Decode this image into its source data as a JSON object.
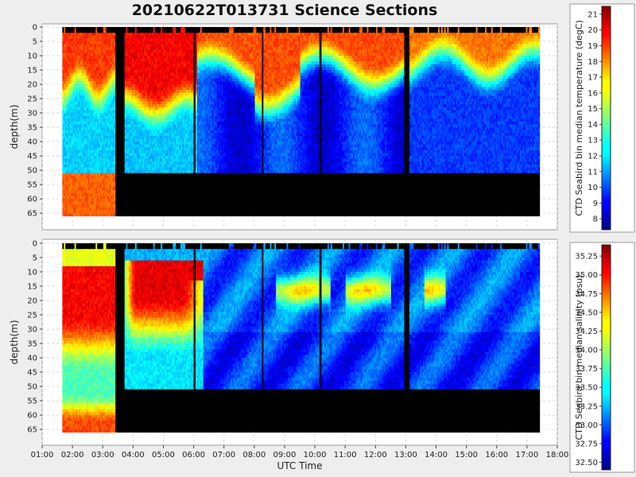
{
  "title": "20210622T013731 Science Sections",
  "chart_data": [
    {
      "type": "heatmap",
      "title": "20210622T013731 Science Sections",
      "xlabel": "UTC Time",
      "ylabel": "depth(m)",
      "x_ticks": [
        "01:00",
        "02:00",
        "03:00",
        "04:00",
        "05:00",
        "06:00",
        "07:00",
        "08:00",
        "09:00",
        "10:00",
        "11:00",
        "12:00",
        "13:00",
        "14:00",
        "15:00",
        "16:00",
        "17:00",
        "18:00"
      ],
      "y_ticks": [
        0,
        5,
        10,
        15,
        20,
        25,
        30,
        35,
        40,
        45,
        50,
        55,
        60,
        65
      ],
      "xlim": [
        "01:00",
        "18:00"
      ],
      "ylim": [
        0,
        67
      ],
      "y_inverted": true,
      "colorbar_label": "CTD Seabird bin median temperature (degC)",
      "colorbar_ticks": [
        8,
        9,
        10,
        11,
        12,
        13,
        14,
        15,
        16,
        17,
        18,
        19,
        20,
        21
      ],
      "colorbar_range": [
        7.3,
        21.5
      ],
      "colormap": "jet",
      "bottom_depth_m": 51,
      "data_time_range": [
        "01:40",
        "17:25"
      ],
      "description_of_field": [
        {
          "time": "01:40-03:25",
          "surface_mixed_layer_m": 20,
          "surface_value": 19.5,
          "deep_value": 11
        },
        {
          "time": "03:45-06:00",
          "surface_mixed_layer_m": 25,
          "surface_value": 20,
          "deep_value": 11.5
        },
        {
          "time": "06:00-13:00",
          "surface_mixed_layer_m": 14,
          "surface_value": 19,
          "deep_value": 10
        },
        {
          "time": "13:00-17:25",
          "surface_mixed_layer_m": 12,
          "surface_value": 18.5,
          "deep_value": 10
        }
      ]
    },
    {
      "type": "heatmap",
      "xlabel": "UTC Time",
      "ylabel": "depth(m)",
      "x_ticks": [
        "01:00",
        "02:00",
        "03:00",
        "04:00",
        "05:00",
        "06:00",
        "07:00",
        "08:00",
        "09:00",
        "10:00",
        "11:00",
        "12:00",
        "13:00",
        "14:00",
        "15:00",
        "16:00",
        "17:00",
        "18:00"
      ],
      "y_ticks": [
        0,
        5,
        10,
        15,
        20,
        25,
        30,
        35,
        40,
        45,
        50,
        55,
        60,
        65
      ],
      "xlim": [
        "01:00",
        "18:00"
      ],
      "ylim": [
        0,
        67
      ],
      "y_inverted": true,
      "colorbar_label": "CTD Seabird bin median salinity (psu)",
      "colorbar_ticks": [
        "32.50",
        "32.75",
        "33.00",
        "33.25",
        "33.50",
        "33.75",
        "34.00",
        "34.25",
        "34.50",
        "34.75",
        "35.00",
        "35.25"
      ],
      "colorbar_range": [
        32.4,
        35.4
      ],
      "colormap": "jet",
      "bottom_depth_m": 51,
      "data_time_range": [
        "01:40",
        "17:25"
      ]
    }
  ],
  "panels": [
    {
      "ylabel": "depth(m)",
      "colorbar_label": "CTD Seabird bin median temperature (degC)",
      "y_ticks": [
        "0",
        "5",
        "10",
        "15",
        "20",
        "25",
        "30",
        "35",
        "40",
        "45",
        "50",
        "55",
        "60",
        "65"
      ],
      "cb_ticks": [
        "8",
        "9",
        "10",
        "11",
        "12",
        "13",
        "14",
        "15",
        "16",
        "17",
        "18",
        "19",
        "20",
        "21"
      ]
    },
    {
      "ylabel": "depth(m)",
      "colorbar_label": "CTD Seabird bin median salinity (psu)",
      "y_ticks": [
        "0",
        "5",
        "10",
        "15",
        "20",
        "25",
        "30",
        "35",
        "40",
        "45",
        "50",
        "55",
        "60",
        "65"
      ],
      "cb_ticks": [
        "32.50",
        "32.75",
        "33.00",
        "33.25",
        "33.50",
        "33.75",
        "34.00",
        "34.25",
        "34.50",
        "34.75",
        "35.00",
        "35.25"
      ]
    }
  ],
  "x_ticks": [
    "01:00",
    "02:00",
    "03:00",
    "04:00",
    "05:00",
    "06:00",
    "07:00",
    "08:00",
    "09:00",
    "10:00",
    "11:00",
    "12:00",
    "13:00",
    "14:00",
    "15:00",
    "16:00",
    "17:00",
    "18:00"
  ],
  "xlabel": "UTC Time"
}
